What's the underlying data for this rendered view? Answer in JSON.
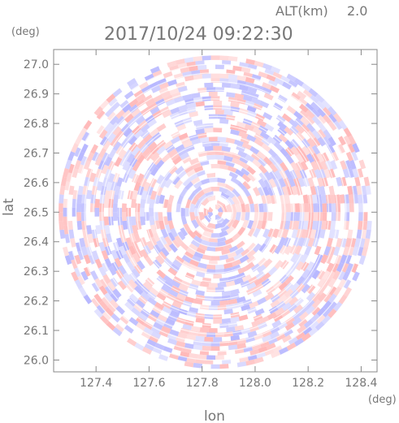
{
  "header": {
    "altitude_label": "ALT(km)",
    "altitude_value": "2.0",
    "timestamp": "2017/10/24 09:22:30"
  },
  "colors": {
    "positive": "#ffb4b4",
    "negative": "#b4b4ff",
    "neutral": "#ffffff",
    "frame": "#888888",
    "text": "#777777"
  },
  "chart_data": {
    "type": "heatmap",
    "title": "2017/10/24 09:22:30",
    "subtitle": "ALT(km) 2.0",
    "xlabel": "lon",
    "ylabel": "lat",
    "x_unit": "(deg)",
    "y_unit": "(deg)",
    "xlim": [
      127.24,
      128.46
    ],
    "ylim": [
      25.96,
      27.05
    ],
    "x_ticks": [
      "127.4",
      "127.6",
      "127.8",
      "128.0",
      "128.2",
      "128.4"
    ],
    "y_ticks": [
      "26.0",
      "26.1",
      "26.2",
      "26.3",
      "26.4",
      "26.5",
      "26.6",
      "26.7",
      "26.8",
      "26.9",
      "27.0"
    ],
    "radar_center": [
      127.85,
      26.5
    ],
    "radar_radius_deg_lat": 0.53,
    "color_scale": "diverging blue-white-red (Doppler velocity, no legend shown)"
  }
}
